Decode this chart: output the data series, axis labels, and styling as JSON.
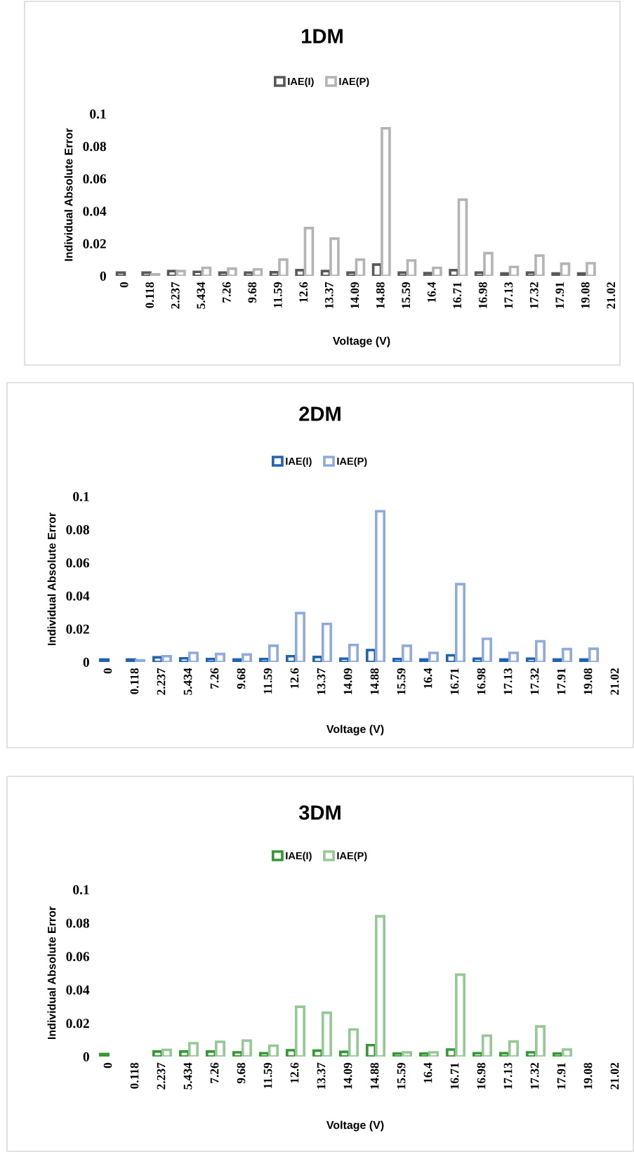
{
  "chart_data": [
    {
      "type": "bar",
      "title": "1DM",
      "xlabel": "Voltage (V)",
      "ylabel": "Individual Absolute Error",
      "legend": "top",
      "categories": [
        "0",
        "0.118",
        "2.237",
        "5.434",
        "7.26",
        "9.68",
        "11.59",
        "12.6",
        "13.37",
        "14.09",
        "14.88",
        "15.59",
        "16.4",
        "16.71",
        "16.98",
        "17.13",
        "17.32",
        "17.91",
        "19.08",
        "21.02"
      ],
      "ylim": [
        0,
        0.1
      ],
      "yticks": [
        0,
        0.02,
        0.04,
        0.06,
        0.08,
        0.1
      ],
      "grid": false,
      "series": [
        {
          "name": "IAE(I)",
          "color": "#595959",
          "values": [
            0.002,
            0.002,
            0.003,
            0.0025,
            0.002,
            0.002,
            0.0022,
            0.0035,
            0.003,
            0.002,
            0.007,
            0.002,
            0.0017,
            0.0035,
            0.002,
            0.0015,
            0.002,
            0.0015,
            0.0015,
            null
          ]
        },
        {
          "name": "IAE(P)",
          "color": "#b4b4b4",
          "values": [
            null,
            0.001,
            0.003,
            0.005,
            0.0045,
            0.004,
            0.01,
            0.0295,
            0.023,
            0.01,
            0.091,
            0.0095,
            0.005,
            0.047,
            0.014,
            0.0055,
            0.0125,
            0.0075,
            0.0078,
            null
          ]
        }
      ]
    },
    {
      "type": "bar",
      "title": "2DM",
      "xlabel": "Voltage (V)",
      "ylabel": "Individual Absolute Error",
      "legend": "top",
      "categories": [
        "0",
        "0.118",
        "2.237",
        "5.434",
        "7.26",
        "9.68",
        "11.59",
        "12.6",
        "13.37",
        "14.09",
        "14.88",
        "15.59",
        "16.4",
        "16.71",
        "16.98",
        "17.13",
        "17.32",
        "17.91",
        "19.08",
        "21.02"
      ],
      "ylim": [
        0,
        0.1
      ],
      "yticks": [
        0,
        0.02,
        0.04,
        0.06,
        0.08,
        0.1
      ],
      "grid": false,
      "series": [
        {
          "name": "IAE(I)",
          "color": "#2063b0",
          "values": [
            0.0015,
            0.0015,
            0.0028,
            0.0022,
            0.0018,
            0.0015,
            0.0018,
            0.0035,
            0.003,
            0.002,
            0.0072,
            0.0018,
            0.0015,
            0.004,
            0.002,
            0.0015,
            0.002,
            0.0015,
            0.0015,
            null
          ]
        },
        {
          "name": "IAE(P)",
          "color": "#8faadc",
          "values": [
            null,
            0.001,
            0.0035,
            0.0055,
            0.0048,
            0.0045,
            0.0098,
            0.0295,
            0.023,
            0.0103,
            0.091,
            0.0098,
            0.0055,
            0.047,
            0.014,
            0.0055,
            0.0125,
            0.0078,
            0.008,
            null
          ]
        }
      ]
    },
    {
      "type": "bar",
      "title": "3DM",
      "xlabel": "Voltage (V)",
      "ylabel": "Individual Absolute Error",
      "legend": "top",
      "categories": [
        "0",
        "0.118",
        "2.237",
        "5.434",
        "7.26",
        "9.68",
        "11.59",
        "12.6",
        "13.37",
        "14.09",
        "14.88",
        "15.59",
        "16.4",
        "16.71",
        "16.98",
        "17.13",
        "17.32",
        "17.91",
        "19.08",
        "21.02"
      ],
      "ylim": [
        0,
        0.1
      ],
      "yticks": [
        0,
        0.02,
        0.04,
        0.06,
        0.08,
        0.1
      ],
      "grid": false,
      "series": [
        {
          "name": "IAE(I)",
          "color": "#339933",
          "values": [
            0.0015,
            null,
            0.003,
            0.003,
            0.003,
            0.0025,
            0.002,
            0.0038,
            0.0035,
            0.0028,
            0.0068,
            0.0018,
            0.0018,
            0.0042,
            0.002,
            0.002,
            0.0025,
            0.0018,
            null,
            null
          ]
        },
        {
          "name": "IAE(P)",
          "color": "#96c896",
          "values": [
            null,
            null,
            0.004,
            0.008,
            0.0088,
            0.0095,
            0.0065,
            0.0298,
            0.0262,
            0.0162,
            0.084,
            0.0025,
            0.0025,
            0.049,
            0.0125,
            0.009,
            0.018,
            0.0042,
            null,
            null
          ]
        }
      ]
    }
  ]
}
